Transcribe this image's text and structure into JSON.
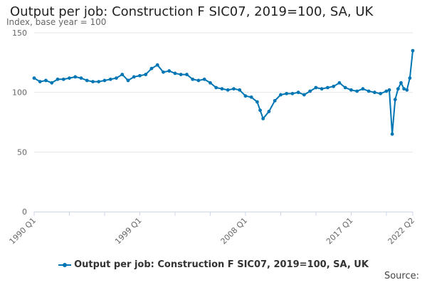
{
  "title": "Output per job: Construction F SIC07, 2019=100, SA, UK",
  "subtitle": "Index, base year = 100",
  "source_label": "Source:",
  "colors": {
    "series": "#0075b4",
    "grid": "#e6e6e6",
    "axis": "#ccd6eb"
  },
  "chart_data": {
    "type": "line",
    "ylim": [
      0,
      150
    ],
    "y_ticks": [
      0,
      50,
      100,
      150
    ],
    "x_tick_labels": [
      "1990 Q1",
      "1999 Q1",
      "2008 Q1",
      "2017 Q1",
      "2022 Q2"
    ],
    "grid": true,
    "legend_position": "bottom-center",
    "series": [
      {
        "name": "Output per job: Construction F SIC07, 2019=100, SA, UK",
        "x": [
          "1990 Q1",
          "1990 Q3",
          "1991 Q1",
          "1991 Q3",
          "1992 Q1",
          "1992 Q3",
          "1993 Q1",
          "1993 Q3",
          "1994 Q1",
          "1994 Q3",
          "1995 Q1",
          "1995 Q3",
          "1996 Q1",
          "1996 Q3",
          "1997 Q1",
          "1997 Q3",
          "1998 Q1",
          "1998 Q3",
          "1999 Q1",
          "1999 Q3",
          "2000 Q1",
          "2000 Q3",
          "2001 Q1",
          "2001 Q3",
          "2002 Q1",
          "2002 Q3",
          "2003 Q1",
          "2003 Q3",
          "2004 Q1",
          "2004 Q3",
          "2005 Q1",
          "2005 Q3",
          "2006 Q1",
          "2006 Q3",
          "2007 Q1",
          "2007 Q3",
          "2008 Q1",
          "2008 Q3",
          "2009 Q1",
          "2009 Q2",
          "2009 Q3",
          "2010 Q1",
          "2010 Q3",
          "2011 Q1",
          "2011 Q3",
          "2012 Q1",
          "2012 Q3",
          "2013 Q1",
          "2013 Q3",
          "2014 Q1",
          "2014 Q3",
          "2015 Q1",
          "2015 Q3",
          "2016 Q1",
          "2016 Q3",
          "2017 Q1",
          "2017 Q3",
          "2018 Q1",
          "2018 Q3",
          "2019 Q1",
          "2019 Q3",
          "2020 Q1",
          "2020 Q2",
          "2020 Q3",
          "2020 Q4",
          "2021 Q1",
          "2021 Q2",
          "2021 Q3",
          "2021 Q4",
          "2022 Q1",
          "2022 Q2"
        ],
        "values": [
          112,
          109,
          110,
          108,
          111,
          111,
          112,
          113,
          112,
          110,
          109,
          109,
          110,
          111,
          112,
          115,
          110,
          113,
          114,
          115,
          120,
          123,
          117,
          118,
          116,
          115,
          115,
          111,
          110,
          111,
          108,
          104,
          103,
          102,
          103,
          102,
          97,
          96,
          92,
          85,
          78,
          84,
          93,
          98,
          99,
          99,
          100,
          98,
          101,
          104,
          103,
          104,
          105,
          108,
          104,
          102,
          101,
          103,
          101,
          100,
          99,
          101,
          102,
          65,
          94,
          103,
          108,
          103,
          102,
          112,
          135
        ]
      }
    ]
  }
}
